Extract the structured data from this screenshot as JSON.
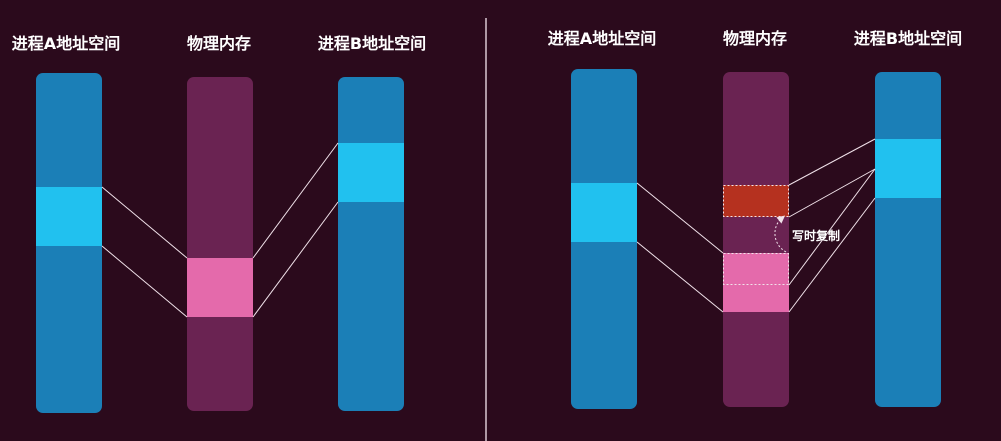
{
  "colors": {
    "background": "#2b0a1c",
    "address_space": "#1b7fb7",
    "mapped_region": "#21c1ef",
    "physical_memory": "#6a2352",
    "shared_page": "#e46aab",
    "copied_page": "#b5311f",
    "line": "#f1e2ea",
    "divider": "#d9c8d2"
  },
  "left_panel": {
    "process_a_label": "进程A地址空间",
    "physical_label": "物理内存",
    "process_b_label": "进程B地址空间"
  },
  "right_panel": {
    "process_a_label": "进程A地址空间",
    "physical_label": "物理内存",
    "process_b_label": "进程B地址空间",
    "cow_label": "写时复制"
  }
}
